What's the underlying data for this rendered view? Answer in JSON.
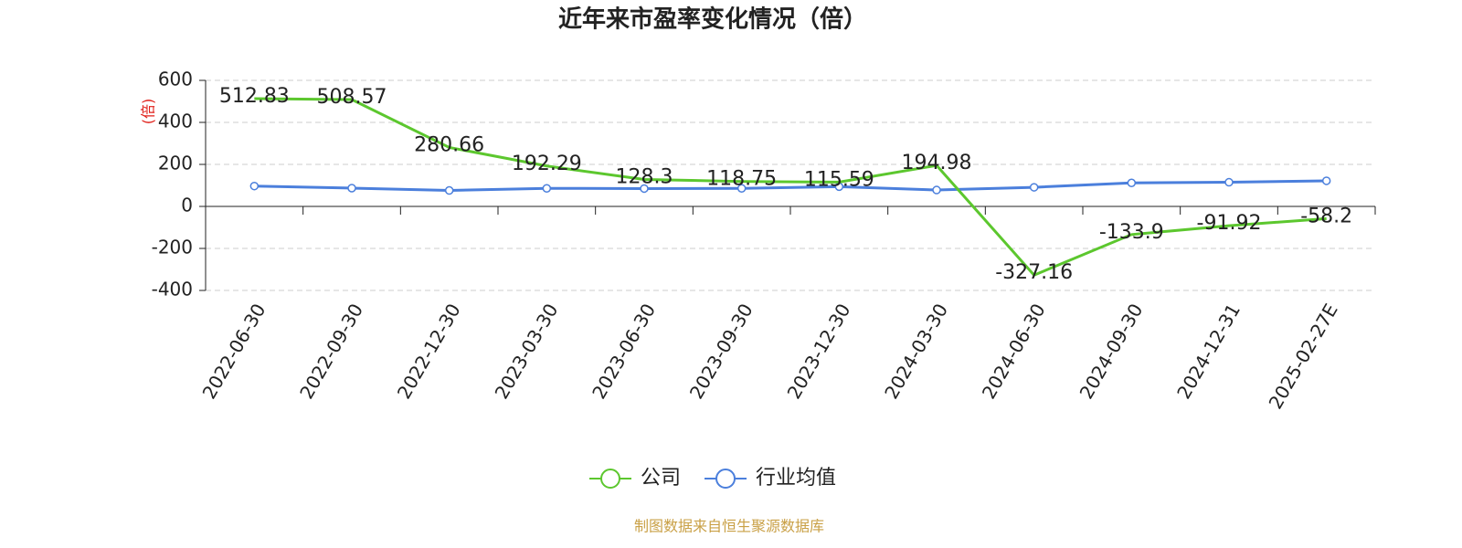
{
  "chart_data": {
    "type": "line",
    "title": "近年来市盈率变化情况（倍）",
    "y_label": "(倍)",
    "categories": [
      "2022-06-30",
      "2022-09-30",
      "2022-12-30",
      "2023-03-30",
      "2023-06-30",
      "2023-09-30",
      "2023-12-30",
      "2024-03-30",
      "2024-06-30",
      "2024-09-30",
      "2024-12-31",
      "2025-02-27E"
    ],
    "series": [
      {
        "name": "公司",
        "color": "#5cc72e",
        "values": [
          512.83,
          508.57,
          280.66,
          192.29,
          128.3,
          118.75,
          115.59,
          194.98,
          -327.16,
          -133.9,
          -91.92,
          -58.2
        ]
      },
      {
        "name": "行业均值",
        "color": "#4b7fdc",
        "values": [
          97,
          87,
          76,
          86,
          85,
          86,
          94,
          78,
          91,
          112,
          115,
          122
        ]
      }
    ],
    "ylim": [
      -400,
      600
    ],
    "yticks": [
      -400,
      -200,
      0,
      200,
      400,
      600
    ],
    "grid": true,
    "source": "制图数据来自恒生聚源数据库"
  }
}
